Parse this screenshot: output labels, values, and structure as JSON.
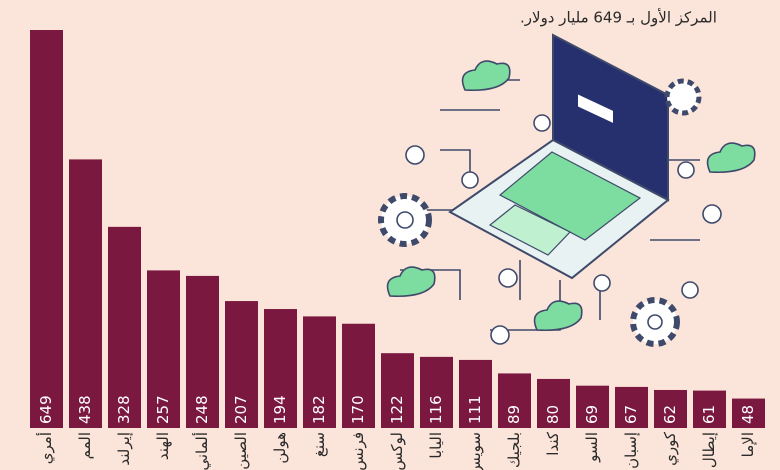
{
  "chart_data": {
    "type": "bar",
    "subtitle": "المركز الأول بـ 649 مليار دولار.",
    "categories": [
      "أمري",
      "المم",
      "إيرلند",
      "الهند",
      "ألماني",
      "الصين",
      "هولن",
      "سنغ",
      "فرنس",
      "لوكس",
      "اليابا",
      "سويس",
      "بلجيك",
      "كندا",
      "السو",
      "إسبان",
      "كوري",
      "إيطال",
      "الإما"
    ],
    "values": [
      649,
      438,
      328,
      257,
      248,
      207,
      194,
      182,
      170,
      122,
      116,
      111,
      89,
      80,
      69,
      67,
      62,
      61,
      48
    ],
    "color": "#7b1840"
  }
}
